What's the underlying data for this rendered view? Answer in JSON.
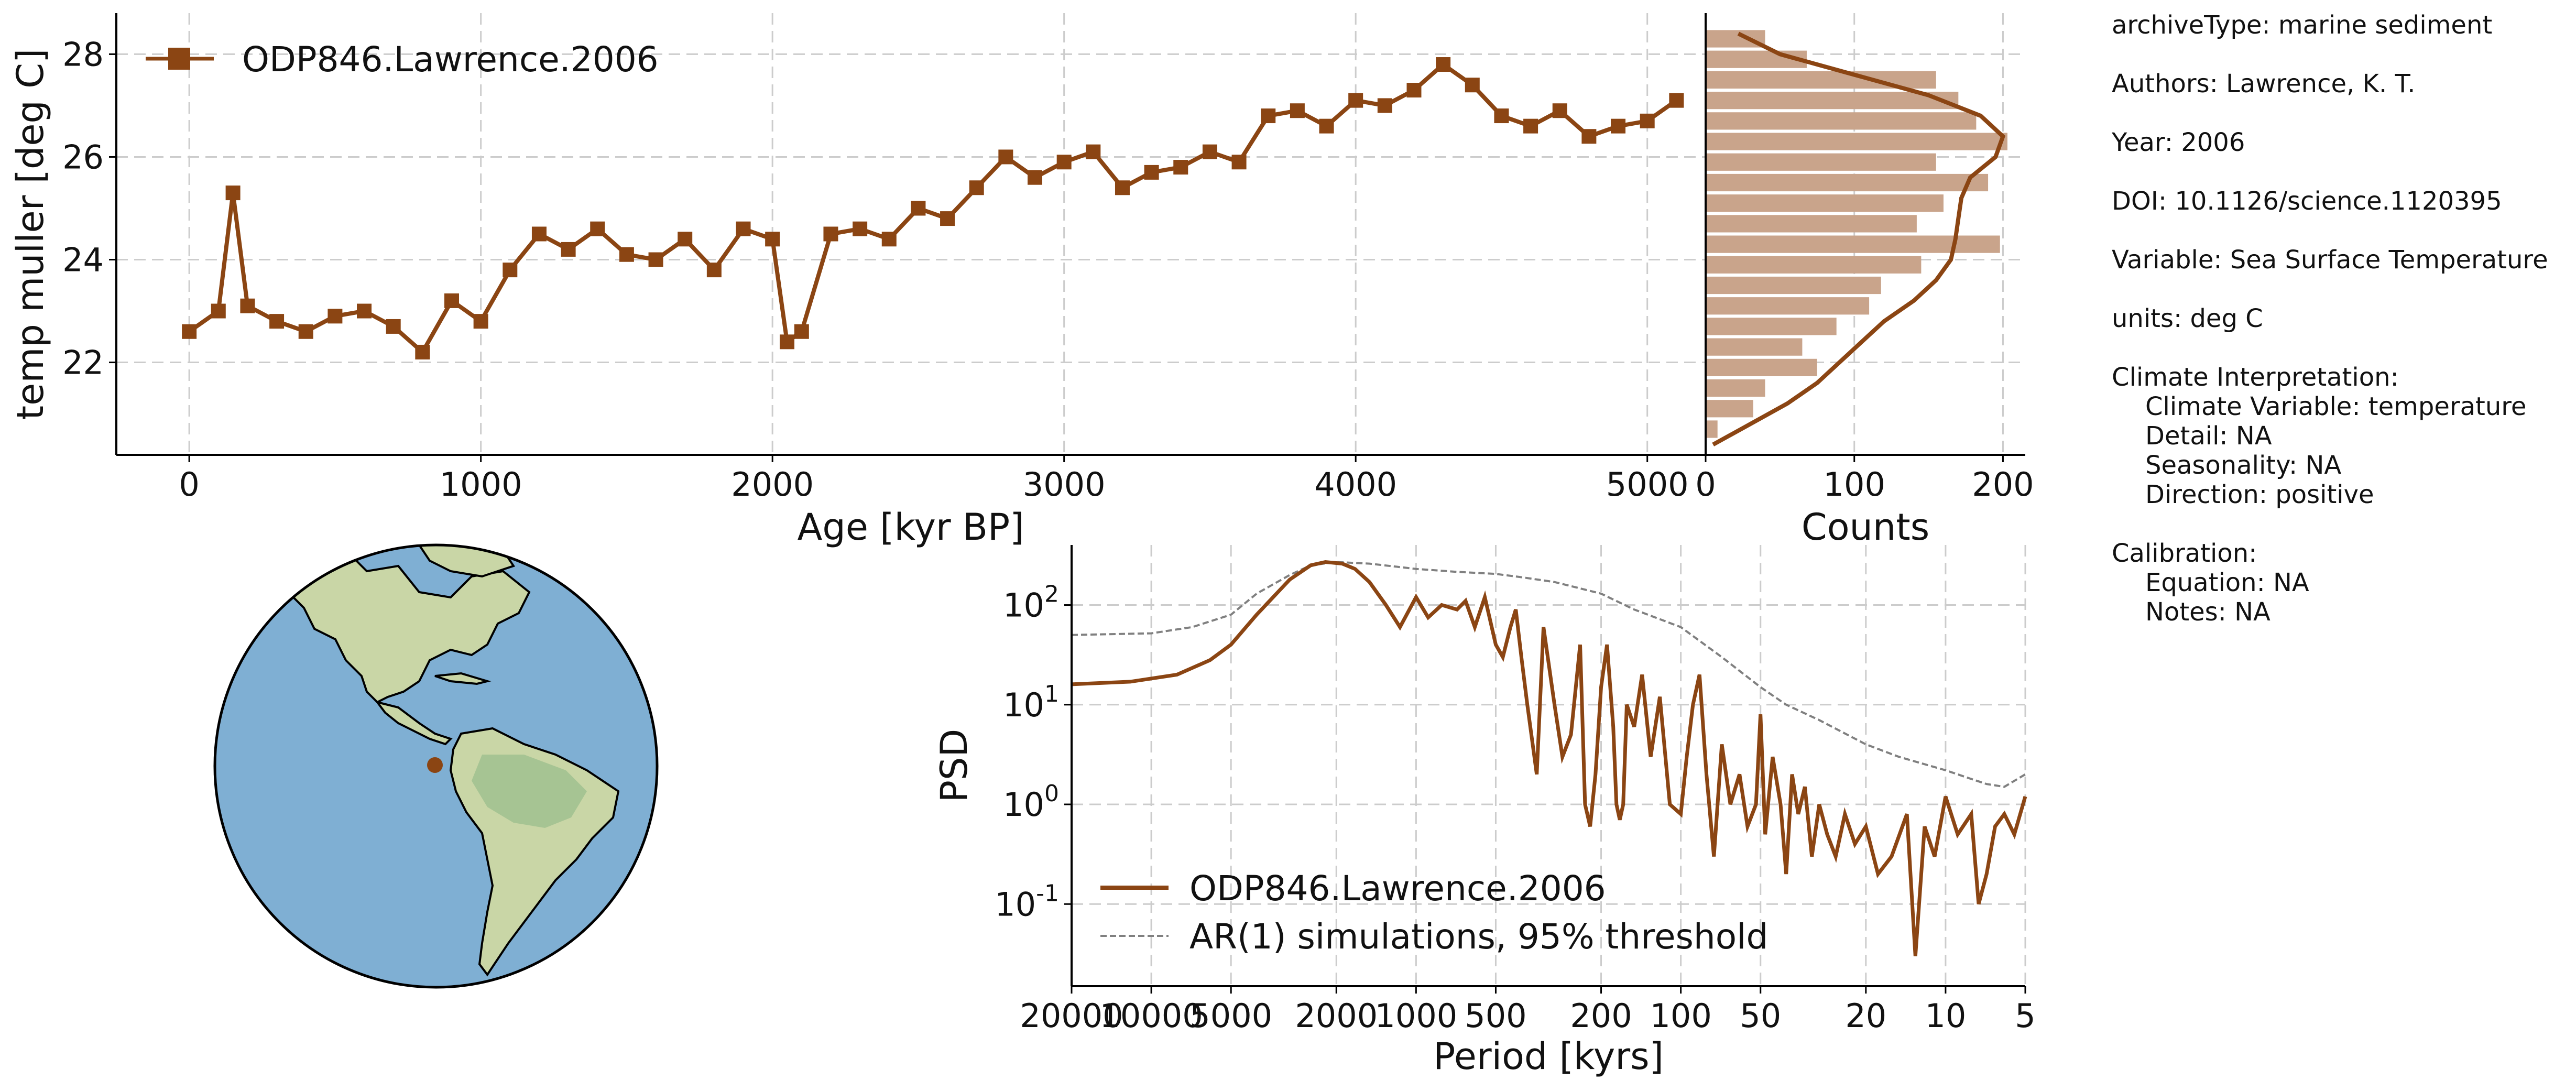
{
  "colors": {
    "series": "#8B4513",
    "hist": "#C9A48B",
    "ar1": "#808080",
    "ocean": "#7FAFD3",
    "land": "#C9D6A6",
    "land_green": "#9DBF8E",
    "marker": "#8B4513"
  },
  "metadata": {
    "archiveType": "archiveType: marine sediment",
    "authors": "Authors: Lawrence, K. T.",
    "year": "Year: 2006",
    "doi": "DOI: 10.1126/science.1120395",
    "variable": "Variable: Sea Surface Temperature",
    "units": "units: deg C",
    "climate_header": "Climate Interpretation:",
    "climate_variable": "Climate Variable: temperature",
    "detail": "Detail: NA",
    "seasonality": "Seasonality: NA",
    "direction": "Direction: positive",
    "calibration_header": "Calibration:",
    "equation": "Equation: NA",
    "notes": "Notes: NA"
  },
  "map": {
    "marker_icon": "site-marker-dot",
    "site_lat": -3,
    "site_lon": -91
  },
  "chart_data": [
    {
      "type": "line",
      "id": "timeseries",
      "title": "",
      "xlabel": "Age [kyr BP]",
      "ylabel": "temp muller [deg C]",
      "xlim": [
        -250,
        5200
      ],
      "ylim": [
        20.2,
        28.8
      ],
      "xticks": [
        0,
        1000,
        2000,
        3000,
        4000,
        5000
      ],
      "yticks": [
        22,
        24,
        26,
        28
      ],
      "grid": true,
      "marker": "square",
      "legend": {
        "placement": "top-left",
        "entries": [
          "ODP846.Lawrence.2006"
        ]
      },
      "series": [
        {
          "name": "ODP846.Lawrence.2006",
          "x": [
            0,
            100,
            150,
            200,
            300,
            400,
            500,
            600,
            700,
            800,
            900,
            1000,
            1100,
            1200,
            1300,
            1400,
            1500,
            1600,
            1700,
            1800,
            1900,
            2000,
            2050,
            2100,
            2200,
            2300,
            2400,
            2500,
            2600,
            2700,
            2800,
            2900,
            3000,
            3100,
            3200,
            3300,
            3400,
            3500,
            3600,
            3700,
            3800,
            3900,
            4000,
            4100,
            4200,
            4300,
            4400,
            4500,
            4600,
            4700,
            4800,
            4900,
            5000,
            5100
          ],
          "y": [
            22.6,
            23.0,
            25.3,
            23.1,
            22.8,
            22.6,
            22.9,
            23.0,
            22.7,
            22.2,
            23.2,
            22.8,
            23.8,
            24.5,
            24.2,
            24.6,
            24.1,
            24.0,
            24.4,
            23.8,
            24.6,
            24.4,
            22.4,
            22.6,
            24.5,
            24.6,
            24.4,
            25.0,
            24.8,
            25.4,
            26.0,
            25.6,
            25.9,
            26.1,
            25.4,
            25.7,
            25.8,
            26.1,
            25.9,
            26.8,
            26.9,
            26.6,
            27.1,
            27.0,
            27.3,
            27.8,
            27.4,
            26.8,
            26.6,
            26.9,
            26.4,
            26.6,
            26.7,
            27.1
          ]
        }
      ]
    },
    {
      "type": "bar",
      "id": "histogram",
      "orientation": "horizontal",
      "xlabel": "Counts",
      "ylabel": "",
      "xlim": [
        0,
        215
      ],
      "xticks": [
        0,
        100,
        200
      ],
      "bin_centers": [
        20.7,
        21.1,
        21.5,
        21.9,
        22.3,
        22.7,
        23.1,
        23.5,
        23.9,
        24.3,
        24.7,
        25.1,
        25.5,
        25.9,
        26.3,
        26.7,
        27.1,
        27.5,
        27.9,
        28.3
      ],
      "values": [
        8,
        32,
        40,
        75,
        65,
        88,
        110,
        118,
        145,
        198,
        142,
        160,
        190,
        155,
        203,
        182,
        170,
        155,
        68,
        40
      ],
      "kde": {
        "y": [
          20.4,
          20.8,
          21.2,
          21.6,
          22.0,
          22.4,
          22.8,
          23.2,
          23.6,
          24.0,
          24.4,
          24.8,
          25.2,
          25.6,
          26.0,
          26.4,
          26.8,
          27.2,
          27.6,
          28.0,
          28.4
        ],
        "x": [
          5,
          30,
          55,
          75,
          90,
          105,
          120,
          140,
          155,
          165,
          168,
          170,
          172,
          178,
          195,
          200,
          185,
          150,
          100,
          50,
          22
        ]
      }
    },
    {
      "type": "line",
      "id": "psd",
      "xlabel": "Period [kyrs]",
      "ylabel": "PSD",
      "xscale": "log-reversed",
      "yscale": "log",
      "xlim": [
        20000,
        5
      ],
      "ylim": [
        0.015,
        400
      ],
      "xticks": [
        20000,
        10000,
        5000,
        2000,
        1000,
        500,
        200,
        100,
        50,
        20,
        10,
        5
      ],
      "xtick_labels": [
        "20000",
        "10000",
        "5000",
        "2000",
        "1000",
        "500",
        "200",
        "100",
        "50",
        "20",
        "10",
        "5"
      ],
      "ytick_exponents": [
        "-1",
        "0",
        "1",
        "2"
      ],
      "ytick_base": "10",
      "grid": true,
      "legend": {
        "placement": "lower-left",
        "entries": [
          "ODP846.Lawrence.2006",
          "AR(1) simulations, 95% threshold"
        ]
      },
      "series": [
        {
          "name": "ODP846.Lawrence.2006",
          "period": [
            20000,
            12000,
            8000,
            6000,
            5000,
            4000,
            3000,
            2500,
            2200,
            1900,
            1700,
            1500,
            1300,
            1150,
            1000,
            900,
            800,
            700,
            650,
            600,
            550,
            500,
            470,
            440,
            420,
            400,
            380,
            350,
            330,
            300,
            280,
            260,
            240,
            230,
            220,
            210,
            200,
            190,
            180,
            175,
            170,
            165,
            160,
            150,
            140,
            130,
            120,
            110,
            100,
            95,
            90,
            85,
            80,
            75,
            70,
            65,
            60,
            56,
            52,
            50,
            48,
            45,
            42,
            40,
            38,
            36,
            34,
            32,
            30,
            28,
            26,
            24,
            22,
            20,
            18,
            16,
            14,
            13,
            12,
            11,
            10,
            9,
            8,
            7.5,
            7,
            6.5,
            6,
            5.5,
            5
          ],
          "psd": [
            16,
            17,
            20,
            28,
            40,
            80,
            180,
            250,
            270,
            260,
            230,
            170,
            100,
            60,
            120,
            75,
            100,
            90,
            110,
            60,
            120,
            40,
            30,
            60,
            90,
            30,
            10,
            2,
            60,
            10,
            3,
            5,
            40,
            1,
            0.6,
            2,
            15,
            40,
            6,
            1,
            0.7,
            1,
            10,
            6,
            20,
            3,
            12,
            1,
            0.8,
            3,
            10,
            20,
            2,
            0.3,
            4,
            1,
            2,
            0.6,
            1,
            8,
            0.5,
            3,
            1,
            0.2,
            2,
            0.8,
            1.5,
            0.3,
            1,
            0.5,
            0.3,
            0.8,
            0.4,
            0.6,
            0.2,
            0.3,
            0.8,
            0.03,
            0.6,
            0.3,
            1.2,
            0.5,
            0.8,
            0.1,
            0.2,
            0.6,
            0.8,
            0.5,
            1.2
          ]
        },
        {
          "name": "AR(1) simulations, 95% threshold",
          "period": [
            20000,
            10000,
            7000,
            5000,
            4000,
            3000,
            2500,
            2000,
            1500,
            1000,
            700,
            500,
            400,
            300,
            200,
            150,
            100,
            70,
            50,
            40,
            30,
            20,
            15,
            10,
            8,
            7,
            6,
            5
          ],
          "psd": [
            50,
            52,
            60,
            80,
            130,
            200,
            250,
            270,
            260,
            230,
            215,
            205,
            190,
            170,
            130,
            90,
            60,
            30,
            15,
            10,
            7,
            4,
            3,
            2.2,
            1.8,
            1.6,
            1.5,
            2
          ]
        }
      ]
    }
  ]
}
